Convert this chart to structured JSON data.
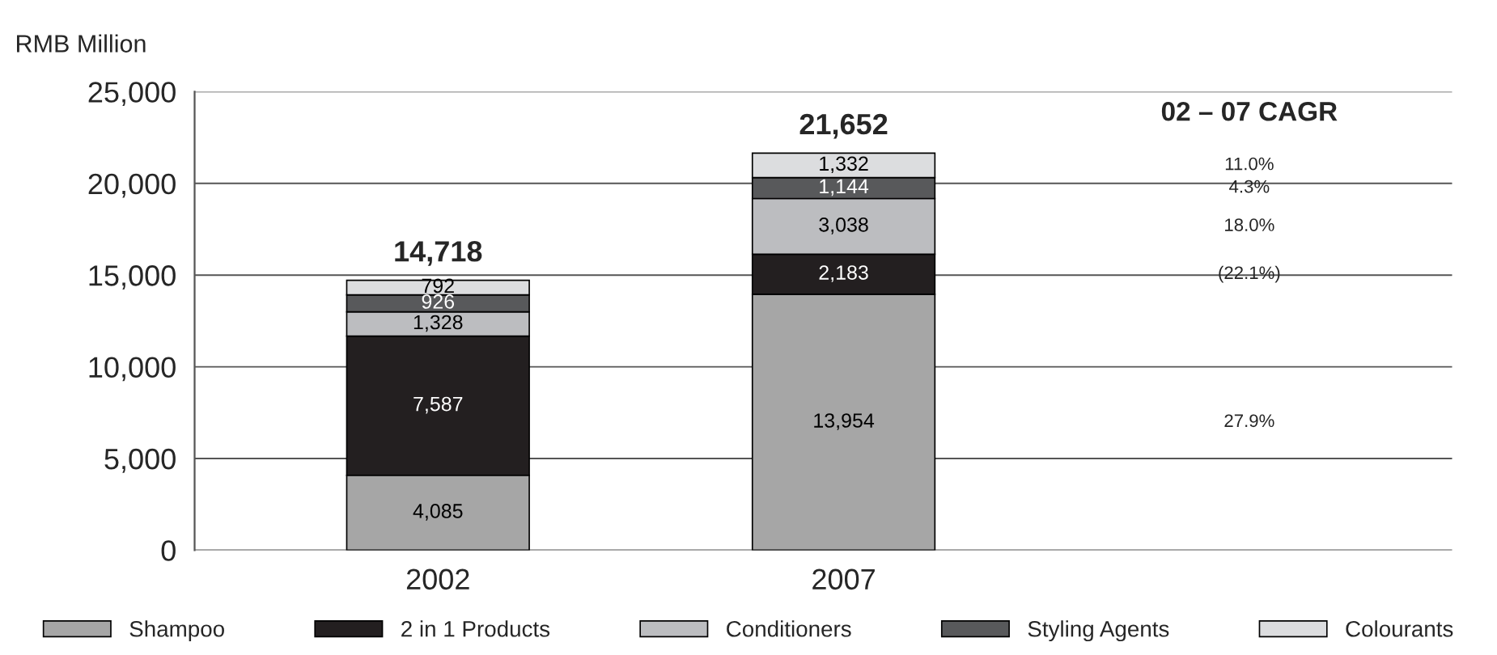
{
  "chart_data": {
    "type": "bar",
    "stacked": true,
    "ylabel": "RMB Million",
    "categories": [
      "2002",
      "2007"
    ],
    "series": [
      {
        "name": "Shampoo",
        "color": "#a6a6a6",
        "values": [
          4085,
          13954
        ],
        "value_labels": [
          "4,085",
          "13,954"
        ]
      },
      {
        "name": "2 in 1 Products",
        "color": "#231f20",
        "values": [
          7587,
          2183
        ],
        "value_labels": [
          "7,587",
          "2,183"
        ]
      },
      {
        "name": "Conditioners",
        "color": "#bcbdc0",
        "values": [
          1328,
          3038
        ],
        "value_labels": [
          "1,328",
          "3,038"
        ]
      },
      {
        "name": "Styling Agents",
        "color": "#58595b",
        "values": [
          926,
          1144
        ],
        "value_labels": [
          "926",
          "1,144"
        ]
      },
      {
        "name": "Colourants",
        "color": "#dcdddf",
        "values": [
          792,
          1332
        ],
        "value_labels": [
          "792",
          "1,332"
        ]
      }
    ],
    "totals": [
      "14,718",
      "21,652"
    ],
    "annotations": [
      "02 – 07 CAGR",
      "27.9%",
      "(22.1%)",
      "18.0%",
      "4.3%",
      "11.0%"
    ],
    "ylim": [
      0,
      25000
    ],
    "yticks": [
      {
        "value": 0,
        "label": "0"
      },
      {
        "value": 5000,
        "label": "5,000"
      },
      {
        "value": 10000,
        "label": "10,000"
      },
      {
        "value": 15000,
        "label": "15,000"
      },
      {
        "value": 20000,
        "label": "20,000"
      },
      {
        "value": 25000,
        "label": "25,000"
      }
    ],
    "grid": "y",
    "legend": "bottom"
  }
}
